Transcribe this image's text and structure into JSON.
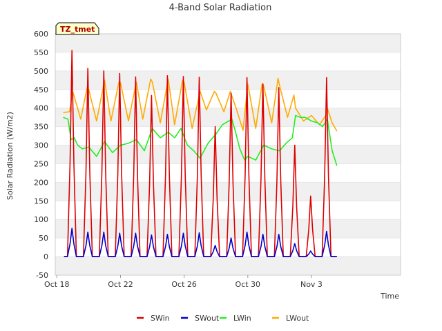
{
  "chart_data": {
    "type": "line",
    "title": "4-Band Solar Radiation",
    "xlabel": "Time",
    "ylabel": "Solar Radiation (W/m2)",
    "badge": "TZ_tmet",
    "xlim": [
      -0.1,
      21.6
    ],
    "ylim": [
      -50,
      600
    ],
    "yticks": [
      -50,
      0,
      50,
      100,
      150,
      200,
      250,
      300,
      350,
      400,
      450,
      500,
      550,
      600
    ],
    "xticks": [
      {
        "label": "Oct 18",
        "day": 0
      },
      {
        "label": "Oct 22",
        "day": 4
      },
      {
        "label": "Oct 26",
        "day": 8
      },
      {
        "label": "Oct 30",
        "day": 12
      },
      {
        "label": "Nov 3",
        "day": 16
      }
    ],
    "grid": true,
    "legend_position": "bottom",
    "colors": {
      "SWin": "#dd0000",
      "SWout": "#0000cc",
      "LWin": "#22ee22",
      "LWout": "#ffaa00",
      "band": "#f0f0f0"
    },
    "series": [
      {
        "name": "SWin",
        "daily_peaks": [
          {
            "day": 0.95,
            "value": 555
          },
          {
            "day": 1.95,
            "value": 507
          },
          {
            "day": 2.95,
            "value": 500
          },
          {
            "day": 3.95,
            "value": 493
          },
          {
            "day": 4.95,
            "value": 484
          },
          {
            "day": 5.95,
            "value": 434
          },
          {
            "day": 6.95,
            "value": 487
          },
          {
            "day": 7.95,
            "value": 485
          },
          {
            "day": 8.95,
            "value": 483
          },
          {
            "day": 9.95,
            "value": 350
          },
          {
            "day": 10.95,
            "value": 440
          },
          {
            "day": 11.95,
            "value": 482
          },
          {
            "day": 12.95,
            "value": 465
          },
          {
            "day": 13.95,
            "value": 455
          },
          {
            "day": 14.95,
            "value": 300
          },
          {
            "day": 15.95,
            "value": 163
          },
          {
            "day": 16.95,
            "value": 482
          }
        ],
        "night_value": 0
      },
      {
        "name": "SWout",
        "daily_peaks": [
          {
            "day": 0.95,
            "value": 76
          },
          {
            "day": 1.95,
            "value": 66
          },
          {
            "day": 2.95,
            "value": 66
          },
          {
            "day": 3.95,
            "value": 63
          },
          {
            "day": 4.95,
            "value": 63
          },
          {
            "day": 5.95,
            "value": 58
          },
          {
            "day": 6.95,
            "value": 60
          },
          {
            "day": 7.95,
            "value": 63
          },
          {
            "day": 8.95,
            "value": 64
          },
          {
            "day": 9.95,
            "value": 30
          },
          {
            "day": 10.95,
            "value": 50
          },
          {
            "day": 11.95,
            "value": 66
          },
          {
            "day": 12.95,
            "value": 60
          },
          {
            "day": 13.95,
            "value": 60
          },
          {
            "day": 14.95,
            "value": 35
          },
          {
            "day": 15.95,
            "value": 15
          },
          {
            "day": 16.95,
            "value": 68
          }
        ],
        "night_value": 0
      },
      {
        "name": "LWin",
        "x": [
          0.4,
          0.7,
          0.9,
          1.1,
          1.3,
          1.6,
          2.0,
          2.5,
          3.0,
          3.5,
          4.0,
          4.5,
          5.0,
          5.5,
          6.0,
          6.5,
          7.0,
          7.4,
          7.8,
          8.2,
          8.6,
          9.0,
          9.5,
          10.0,
          10.4,
          10.8,
          11.0,
          11.2,
          11.5,
          11.8,
          12.0,
          12.5,
          13.0,
          13.5,
          14.0,
          14.4,
          14.8,
          15.0,
          15.3,
          15.6,
          16.0,
          16.4,
          16.7,
          17.0,
          17.3,
          17.6
        ],
        "y": [
          375,
          370,
          315,
          320,
          300,
          290,
          295,
          270,
          310,
          280,
          300,
          305,
          315,
          285,
          345,
          320,
          335,
          320,
          345,
          300,
          285,
          265,
          305,
          330,
          355,
          365,
          370,
          340,
          290,
          260,
          270,
          260,
          300,
          290,
          285,
          305,
          320,
          380,
          375,
          375,
          365,
          360,
          350,
          370,
          285,
          245
        ]
      },
      {
        "name": "LWout",
        "x": [
          0.4,
          0.8,
          1.0,
          1.5,
          1.9,
          2.0,
          2.5,
          3.0,
          3.4,
          3.9,
          4.0,
          4.5,
          5.0,
          5.4,
          5.9,
          6.0,
          6.5,
          7.0,
          7.4,
          7.9,
          8.0,
          8.5,
          9.0,
          9.4,
          9.9,
          10.0,
          10.5,
          10.9,
          11.3,
          11.7,
          12.0,
          12.5,
          12.9,
          13.0,
          13.5,
          13.9,
          14.0,
          14.5,
          14.9,
          15.0,
          15.5,
          16.0,
          16.5,
          16.9,
          17.0,
          17.3,
          17.6
        ],
        "y": [
          388,
          390,
          445,
          370,
          455,
          450,
          365,
          475,
          365,
          470,
          468,
          365,
          470,
          370,
          478,
          470,
          360,
          478,
          355,
          475,
          470,
          345,
          445,
          395,
          445,
          440,
          390,
          445,
          395,
          340,
          465,
          345,
          465,
          460,
          360,
          480,
          460,
          375,
          435,
          400,
          365,
          380,
          355,
          380,
          400,
          360,
          338
        ]
      }
    ]
  }
}
